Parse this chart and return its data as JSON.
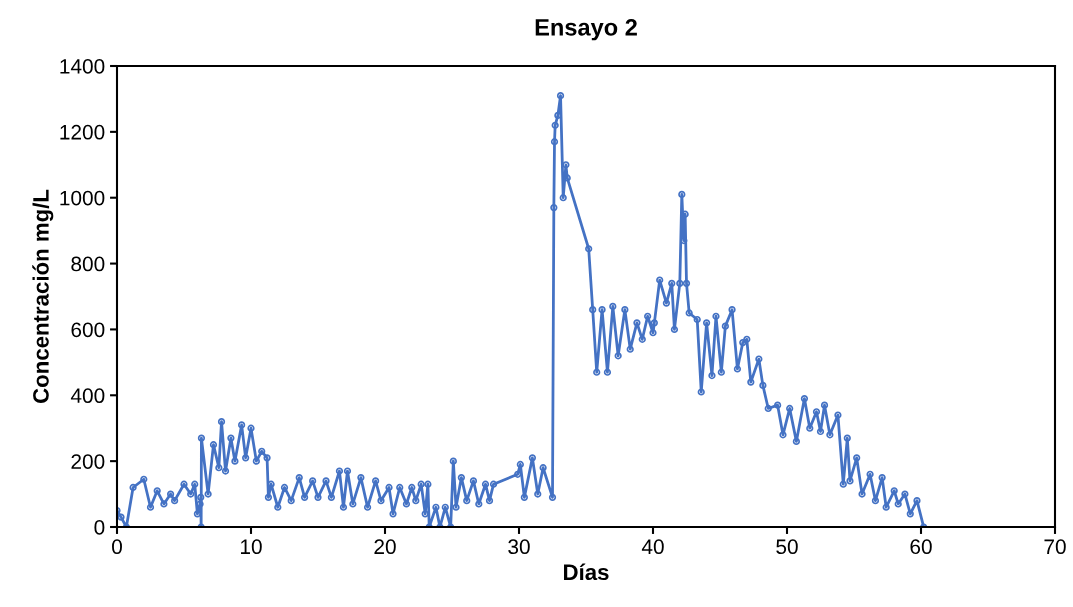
{
  "chart_data": {
    "type": "line",
    "title": "Ensayo 2",
    "xlabel": "Días",
    "ylabel": "Concentración mg/L",
    "x": [
      0,
      0.3,
      0.7,
      1.2,
      2,
      2.5,
      3,
      3.5,
      4,
      4.3,
      5,
      5.5,
      5.8,
      6,
      6.2,
      6.25,
      6.28,
      6.3,
      6.8,
      7.2,
      7.6,
      7.8,
      8.1,
      8.5,
      8.8,
      9.3,
      9.6,
      10,
      10.4,
      10.8,
      11.2,
      11.3,
      11.5,
      12,
      12.5,
      13,
      13.6,
      14,
      14.6,
      15,
      15.6,
      16,
      16.6,
      16.9,
      17.2,
      17.6,
      18.2,
      18.7,
      19.3,
      19.7,
      20.3,
      20.6,
      21.1,
      21.6,
      22,
      22.3,
      22.7,
      23,
      23.2,
      23.3,
      23.8,
      24.1,
      24.5,
      24.9,
      25.1,
      25.3,
      25.7,
      26.1,
      26.6,
      27,
      27.5,
      27.8,
      28.1,
      29.9,
      30.1,
      30.4,
      31,
      31.4,
      31.8,
      32.5,
      32.6,
      32.65,
      32.7,
      32.9,
      33.1,
      33.3,
      33.5,
      33.6,
      35.2,
      35.5,
      35.8,
      36.2,
      36.6,
      37,
      37.4,
      37.9,
      38.3,
      38.8,
      39.2,
      39.6,
      40,
      40.1,
      40.5,
      41,
      41.4,
      41.6,
      42,
      42.15,
      42.3,
      42.4,
      42.5,
      42.7,
      43.3,
      43.6,
      44,
      44.4,
      44.7,
      45.1,
      45.4,
      45.9,
      46.3,
      46.7,
      47,
      47.3,
      47.9,
      48.2,
      48.6,
      49.3,
      49.7,
      50.2,
      50.7,
      51.3,
      51.7,
      52.2,
      52.5,
      52.8,
      53.2,
      53.8,
      54.2,
      54.5,
      54.7,
      55.2,
      55.6,
      56.2,
      56.6,
      57.1,
      57.4,
      58,
      58.3,
      58.8,
      59.2,
      59.7,
      60.2
    ],
    "series": [
      {
        "color": "#4472c4",
        "values": [
          50,
          30,
          0,
          120,
          145,
          60,
          110,
          70,
          100,
          80,
          130,
          100,
          130,
          40,
          70,
          90,
          0,
          270,
          100,
          250,
          180,
          320,
          170,
          270,
          200,
          310,
          210,
          300,
          200,
          230,
          210,
          90,
          130,
          60,
          120,
          80,
          150,
          90,
          140,
          90,
          140,
          90,
          170,
          60,
          170,
          70,
          150,
          60,
          140,
          80,
          120,
          40,
          120,
          70,
          120,
          80,
          130,
          40,
          130,
          0,
          60,
          0,
          60,
          0,
          200,
          60,
          150,
          80,
          140,
          70,
          130,
          80,
          130,
          160,
          190,
          90,
          210,
          100,
          180,
          90,
          970,
          1170,
          1220,
          1250,
          1310,
          1000,
          1100,
          1060,
          845,
          660,
          470,
          660,
          470,
          670,
          520,
          660,
          540,
          620,
          570,
          640,
          590,
          620,
          750,
          680,
          740,
          600,
          740,
          1010,
          870,
          950,
          740,
          650,
          630,
          410,
          620,
          460,
          640,
          470,
          610,
          660,
          480,
          560,
          570,
          440,
          510,
          430,
          360,
          370,
          280,
          360,
          260,
          390,
          300,
          350,
          290,
          370,
          280,
          340,
          130,
          270,
          140,
          210,
          100,
          160,
          80,
          150,
          60,
          110,
          70,
          100,
          40,
          80,
          0
        ]
      }
    ],
    "xlim": [
      0,
      70
    ],
    "xticks": [
      0,
      10,
      20,
      30,
      40,
      50,
      60,
      70
    ],
    "ylim": [
      0,
      1400
    ],
    "yticks": [
      0,
      200,
      400,
      600,
      800,
      1000,
      1200,
      1400
    ],
    "marker": "circle",
    "line_style": "solid",
    "grid": false,
    "legend": false
  }
}
